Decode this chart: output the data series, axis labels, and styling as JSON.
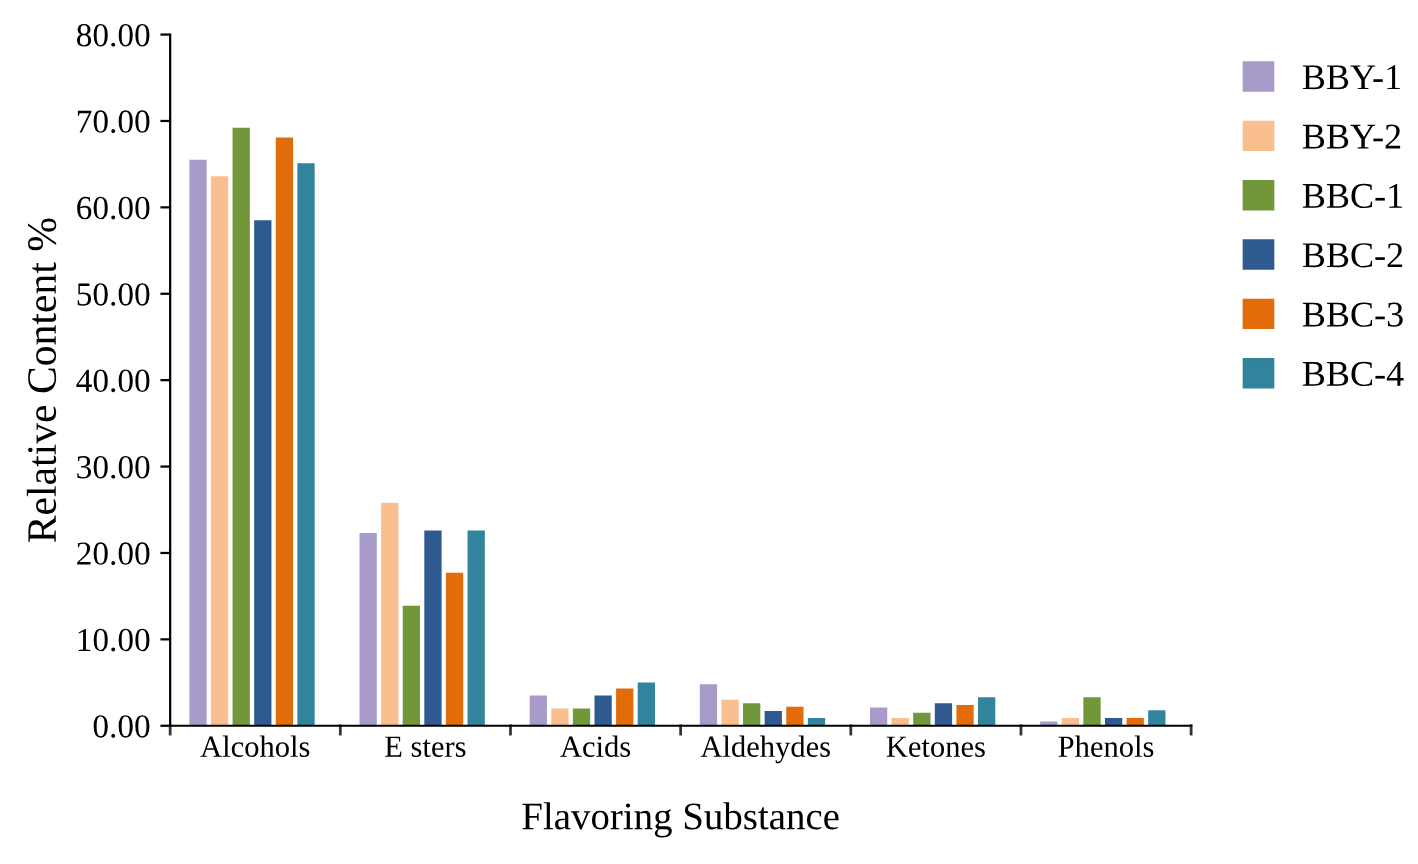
{
  "chart_data": {
    "type": "bar",
    "xlabel": "Flavoring Substance",
    "ylabel": "Relative Content %",
    "categories": [
      "Alcohols",
      "E sters",
      "Acids",
      "Aldehydes",
      "Ketones",
      "Phenols"
    ],
    "series": [
      {
        "name": "BBY-1",
        "color": "#a99bc9",
        "values": [
          65.5,
          22.3,
          3.5,
          4.8,
          2.1,
          0.5
        ]
      },
      {
        "name": "BBY-2",
        "color": "#f9bf8f",
        "values": [
          63.6,
          25.8,
          2.0,
          3.0,
          0.9,
          0.9
        ]
      },
      {
        "name": "BBC-1",
        "color": "#72963a",
        "values": [
          69.2,
          13.9,
          2.0,
          2.6,
          1.5,
          3.3
        ]
      },
      {
        "name": "BBC-2",
        "color": "#2e5a8f",
        "values": [
          58.5,
          22.6,
          3.5,
          1.7,
          2.6,
          0.9
        ]
      },
      {
        "name": "BBC-3",
        "color": "#e36c0a",
        "values": [
          68.1,
          17.7,
          4.3,
          2.2,
          2.4,
          0.9
        ]
      },
      {
        "name": "BBC-4",
        "color": "#31849b",
        "values": [
          65.1,
          22.6,
          5.0,
          0.9,
          3.3,
          1.8
        ]
      }
    ],
    "ylim": [
      0,
      80
    ],
    "yticks": [
      {
        "value": 0,
        "label": "0.00"
      },
      {
        "value": 10,
        "label": "10.00"
      },
      {
        "value": 20,
        "label": "20.00"
      },
      {
        "value": 30,
        "label": "30.00"
      },
      {
        "value": 40,
        "label": "40.00"
      },
      {
        "value": 50,
        "label": "50.00"
      },
      {
        "value": 60,
        "label": "60.00"
      },
      {
        "value": 70,
        "label": "70.00"
      },
      {
        "value": 80,
        "label": "80.00"
      }
    ],
    "grid": false,
    "legend": "right"
  }
}
